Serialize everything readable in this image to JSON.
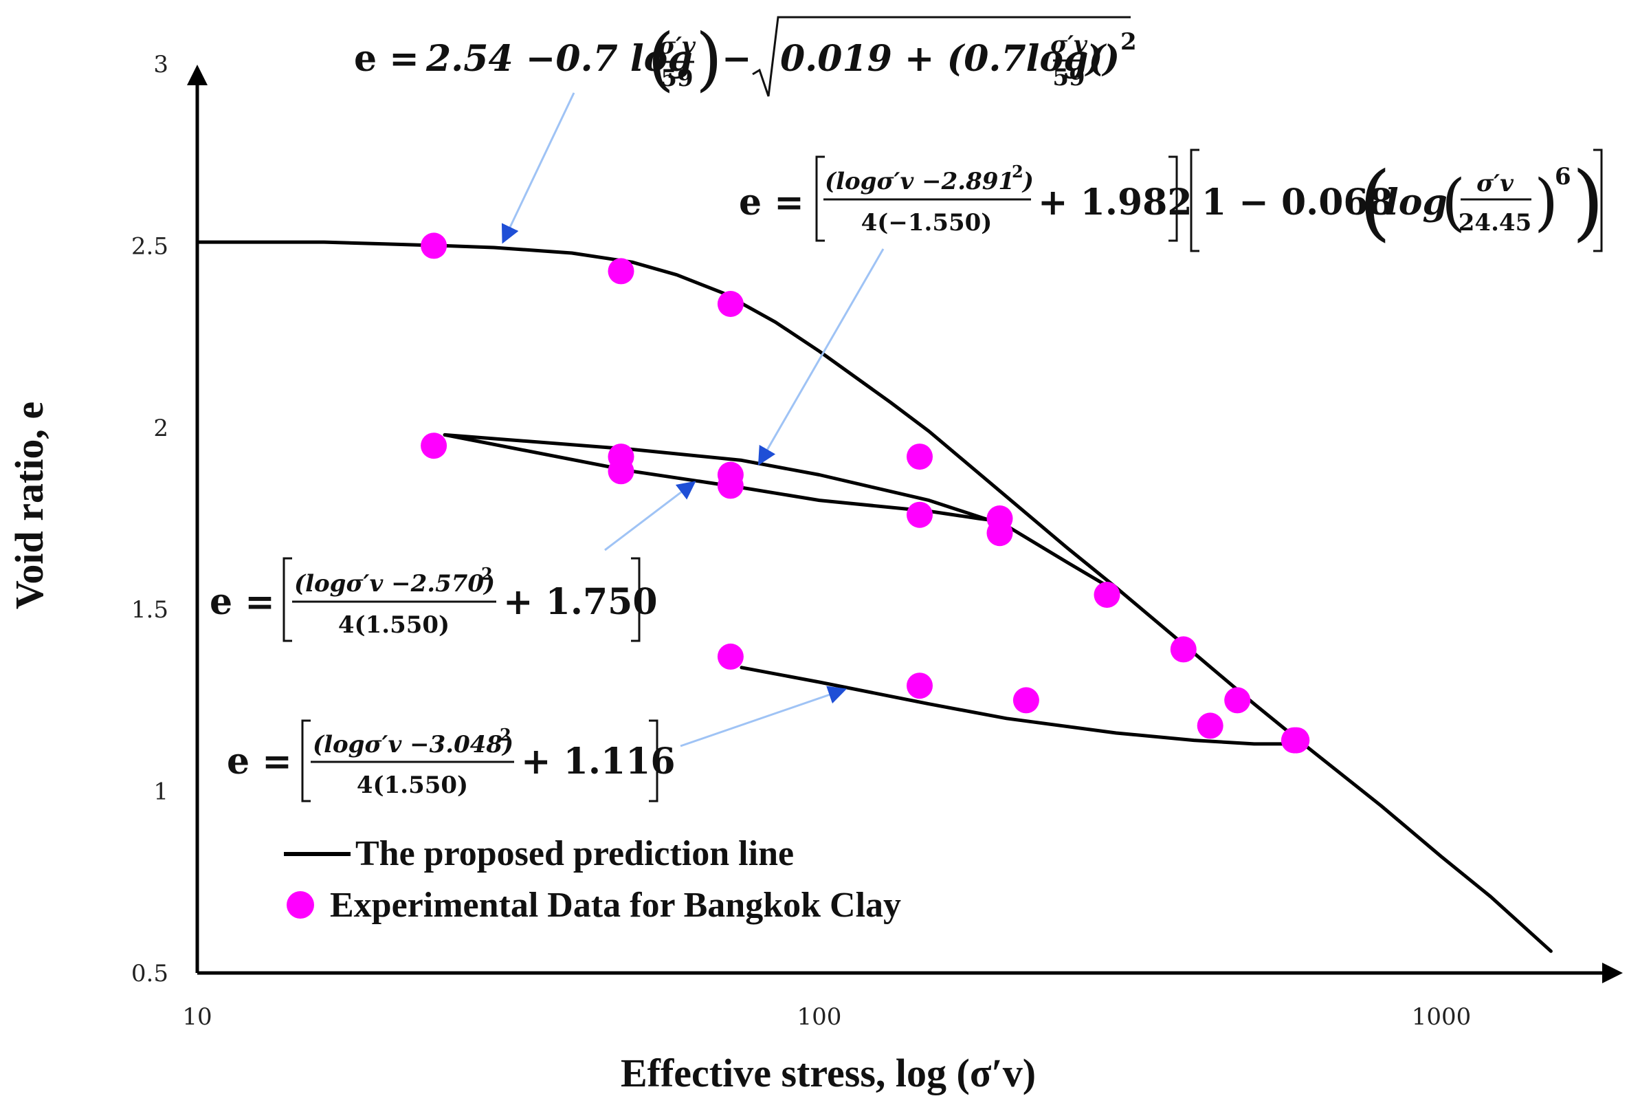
{
  "chart_data": {
    "type": "line",
    "xscale": "log",
    "xlim": [
      10,
      1600
    ],
    "ylim": [
      0.5,
      3
    ],
    "xticks": [
      "10",
      "100",
      "1000"
    ],
    "yticks": [
      "0.5",
      "1",
      "1.5",
      "2",
      "2.5",
      "3"
    ],
    "xlabel": "Effective stress, log (σ′v)",
    "ylabel": "Void ratio, e",
    "legend_placement": "bottom-left",
    "grid": false,
    "legend": {
      "line": "The proposed prediction line",
      "points": "Experimental Data for Bangkok Clay"
    },
    "colors": {
      "line": "#000000",
      "points": "#ff00ff",
      "arrows": "#9fc3f5",
      "arrowheads": "#1f4fd6"
    },
    "series": [
      {
        "name": "The proposed prediction line",
        "kind": "line",
        "segments": [
          {
            "x": [
              10,
              16,
              20,
              25,
              30,
              40,
              50,
              59,
              70,
              85,
              100,
              130,
              150,
              200,
              250,
              300,
              400,
              500,
              600,
              800,
              1000,
              1200,
              1500
            ],
            "y": [
              2.51,
              2.51,
              2.505,
              2.5,
              2.495,
              2.48,
              2.455,
              2.42,
              2.37,
              2.29,
              2.21,
              2.07,
              1.99,
              1.81,
              1.67,
              1.56,
              1.38,
              1.24,
              1.13,
              0.96,
              0.82,
              0.71,
              0.56
            ]
          },
          {
            "x": [
              25,
              50,
              75,
              100,
              150,
              200,
              250,
              300
            ],
            "y": [
              1.98,
              1.94,
              1.91,
              1.87,
              1.8,
              1.73,
              1.63,
              1.55
            ]
          },
          {
            "x": [
              25,
              50,
              75,
              100,
              150,
              180,
              200
            ],
            "y": [
              1.98,
              1.88,
              1.835,
              1.8,
              1.77,
              1.75,
              1.74
            ]
          },
          {
            "x": [
              75,
              100,
              150,
              200,
              300,
              400,
              500,
              600
            ],
            "y": [
              1.34,
              1.3,
              1.24,
              1.2,
              1.16,
              1.14,
              1.13,
              1.13
            ]
          }
        ]
      },
      {
        "name": "Experimental Data for Bangkok Clay",
        "kind": "scatter",
        "x": [
          24,
          48,
          72,
          24,
          48,
          48,
          72,
          72,
          145,
          145,
          195,
          195,
          290,
          385,
          470,
          580,
          72,
          145,
          215,
          425,
          585
        ],
        "y": [
          2.5,
          2.43,
          2.34,
          1.95,
          1.92,
          1.88,
          1.87,
          1.84,
          1.92,
          1.76,
          1.75,
          1.71,
          1.54,
          1.39,
          1.25,
          1.14,
          1.37,
          1.29,
          1.25,
          1.18,
          1.14
        ]
      }
    ],
    "annotations": [
      {
        "lead": "e  = ",
        "n1": "2.54 −0.7 log",
        "frac1_num": "σ′v",
        "frac1_den": "59",
        "n2": "−",
        "sqrt_text": "0.019 + (0.7log(",
        "sqrt_num": "σ′v",
        "sqrt_den": "59",
        "sqrt_tail": "))",
        "power": "2",
        "arrow_to": {
          "x": 31,
          "y": 2.51
        }
      },
      {
        "lead": "e  = ",
        "frac_num": "(logσ′v −2.891 )",
        "frac_num_pow": "2",
        "frac_den": "4(−1.550)",
        "mid": "+ 1.982",
        "bracket2": "1 − 0.068",
        "log_word": "log",
        "inner_num": "σ′v",
        "inner_den": "24.45",
        "power": "6",
        "arrow_to": {
          "x": 80,
          "y": 1.9
        }
      },
      {
        "lead": "e  = ",
        "frac_num": "(logσ′v −2.570)",
        "frac_num_pow": "2",
        "frac_den": "4(1.550)",
        "mid": "+ 1.750",
        "arrow_to": {
          "x": 63,
          "y": 1.85
        }
      },
      {
        "lead": "e  = ",
        "frac_num": "(logσ′v −3.048)",
        "frac_num_pow": "2",
        "frac_den": "4(1.550)",
        "mid": "+ 1.116",
        "arrow_to": {
          "x": 110,
          "y": 1.28
        }
      }
    ]
  }
}
